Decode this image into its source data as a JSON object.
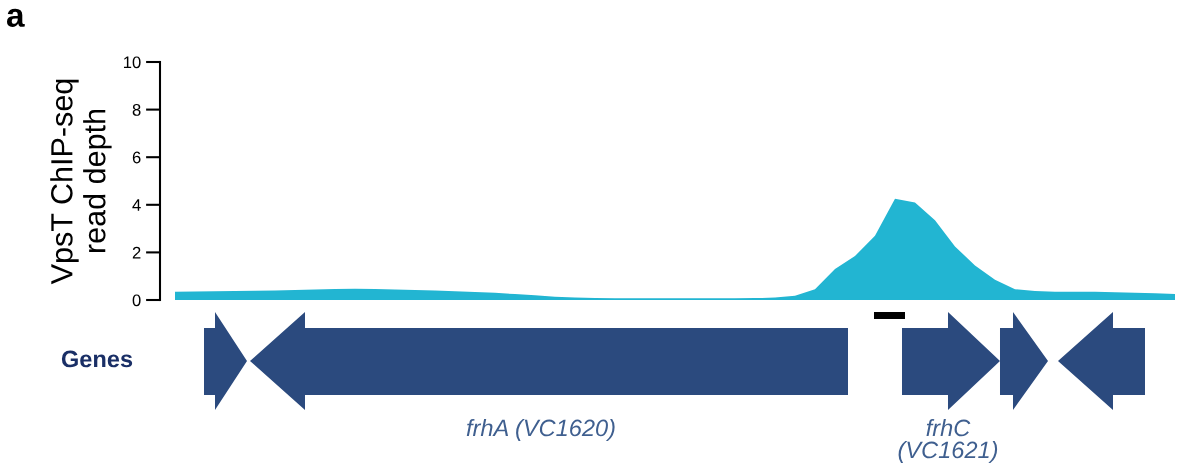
{
  "chart_data": {
    "type": "area",
    "ylabel": "VpsT ChIP-seq\nread depth",
    "categories": [
      null,
      null,
      null,
      null,
      null,
      null,
      null,
      null,
      null,
      null,
      null,
      null,
      null,
      null,
      null,
      null,
      null,
      null,
      null,
      null,
      null,
      null,
      null,
      null,
      null,
      null,
      null,
      null,
      null,
      null,
      null,
      null,
      null,
      null,
      null,
      null,
      null,
      null,
      null,
      null,
      null,
      null,
      null,
      null,
      null,
      null,
      null,
      null,
      null,
      null,
      null
    ],
    "series": [
      {
        "color": "#22b5d2",
        "values": [
          0.35,
          0.36,
          0.37,
          0.38,
          0.39,
          0.4,
          0.42,
          0.44,
          0.46,
          0.47,
          0.46,
          0.44,
          0.42,
          0.4,
          0.37,
          0.34,
          0.3,
          0.25,
          0.2,
          0.14,
          0.1,
          0.08,
          0.07,
          0.07,
          0.07,
          0.07,
          0.07,
          0.07,
          0.07,
          0.08,
          0.1,
          0.18,
          0.45,
          1.3,
          1.85,
          2.7,
          4.25,
          4.1,
          3.35,
          2.25,
          1.45,
          0.85,
          0.45,
          0.38,
          0.35,
          0.35,
          0.35,
          0.33,
          0.3,
          0.28,
          0.25
        ]
      }
    ],
    "ylim": [
      0,
      10
    ],
    "yticks": [
      0,
      2,
      4,
      6,
      8,
      10
    ],
    "grid": false,
    "legend": false,
    "tick_labels": "y",
    "annotations": [
      "a",
      "Genes",
      "frhA (VC1620)",
      "frhC\n(VC1621)"
    ]
  }
}
